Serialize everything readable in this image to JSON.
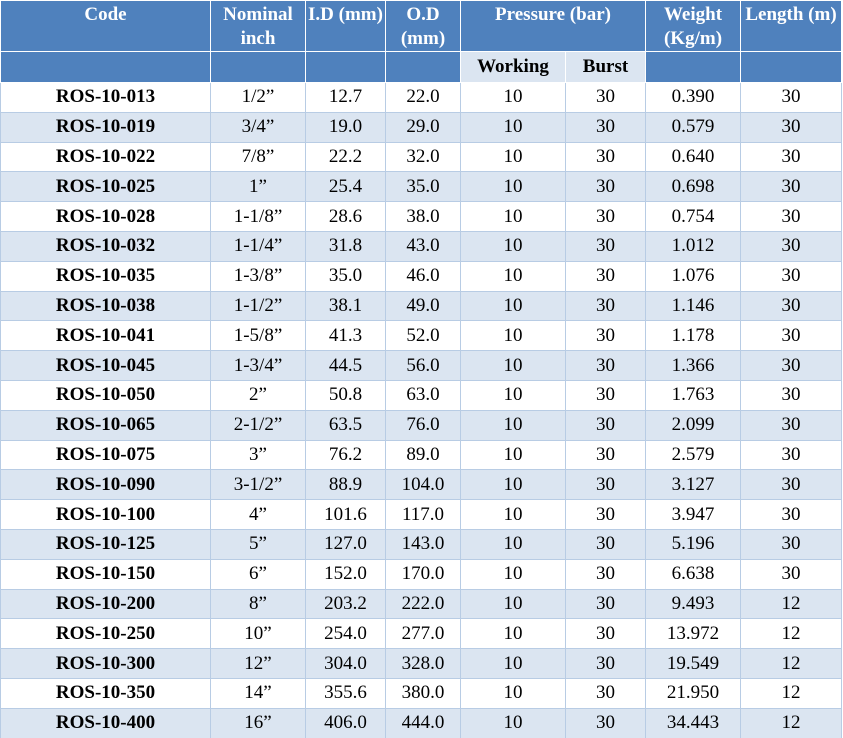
{
  "header": {
    "columns": [
      "Code",
      "Nominal inch",
      "I.D (mm)",
      "O.D (mm)",
      "Pressure (bar)",
      "Weight (Kg/m)",
      "Length (m)"
    ],
    "subcolumns": [
      "Working",
      "Burst"
    ]
  },
  "table": {
    "rows": [
      [
        "ROS-10-013",
        "1/2”",
        "12.7",
        "22.0",
        "10",
        "30",
        "0.390",
        "30"
      ],
      [
        "ROS-10-019",
        "3/4”",
        "19.0",
        "29.0",
        "10",
        "30",
        "0.579",
        "30"
      ],
      [
        "ROS-10-022",
        "7/8”",
        "22.2",
        "32.0",
        "10",
        "30",
        "0.640",
        "30"
      ],
      [
        "ROS-10-025",
        "1”",
        "25.4",
        "35.0",
        "10",
        "30",
        "0.698",
        "30"
      ],
      [
        "ROS-10-028",
        "1-1/8”",
        "28.6",
        "38.0",
        "10",
        "30",
        "0.754",
        "30"
      ],
      [
        "ROS-10-032",
        "1-1/4”",
        "31.8",
        "43.0",
        "10",
        "30",
        "1.012",
        "30"
      ],
      [
        "ROS-10-035",
        "1-3/8”",
        "35.0",
        "46.0",
        "10",
        "30",
        "1.076",
        "30"
      ],
      [
        "ROS-10-038",
        "1-1/2”",
        "38.1",
        "49.0",
        "10",
        "30",
        "1.146",
        "30"
      ],
      [
        "ROS-10-041",
        "1-5/8”",
        "41.3",
        "52.0",
        "10",
        "30",
        "1.178",
        "30"
      ],
      [
        "ROS-10-045",
        "1-3/4”",
        "44.5",
        "56.0",
        "10",
        "30",
        "1.366",
        "30"
      ],
      [
        "ROS-10-050",
        "2”",
        "50.8",
        "63.0",
        "10",
        "30",
        "1.763",
        "30"
      ],
      [
        "ROS-10-065",
        "2-1/2”",
        "63.5",
        "76.0",
        "10",
        "30",
        "2.099",
        "30"
      ],
      [
        "ROS-10-075",
        "3”",
        "76.2",
        "89.0",
        "10",
        "30",
        "2.579",
        "30"
      ],
      [
        "ROS-10-090",
        "3-1/2”",
        "88.9",
        "104.0",
        "10",
        "30",
        "3.127",
        "30"
      ],
      [
        "ROS-10-100",
        "4”",
        "101.6",
        "117.0",
        "10",
        "30",
        "3.947",
        "30"
      ],
      [
        "ROS-10-125",
        "5”",
        "127.0",
        "143.0",
        "10",
        "30",
        "5.196",
        "30"
      ],
      [
        "ROS-10-150",
        "6”",
        "152.0",
        "170.0",
        "10",
        "30",
        "6.638",
        "30"
      ],
      [
        "ROS-10-200",
        "8”",
        "203.2",
        "222.0",
        "10",
        "30",
        "9.493",
        "12"
      ],
      [
        "ROS-10-250",
        "10”",
        "254.0",
        "277.0",
        "10",
        "30",
        "13.972",
        "12"
      ],
      [
        "ROS-10-300",
        "12”",
        "304.0",
        "328.0",
        "10",
        "30",
        "19.549",
        "12"
      ],
      [
        "ROS-10-350",
        "14”",
        "355.6",
        "380.0",
        "10",
        "30",
        "21.950",
        "12"
      ],
      [
        "ROS-10-400",
        "16”",
        "406.0",
        "444.0",
        "10",
        "30",
        "34.443",
        "12"
      ]
    ]
  }
}
